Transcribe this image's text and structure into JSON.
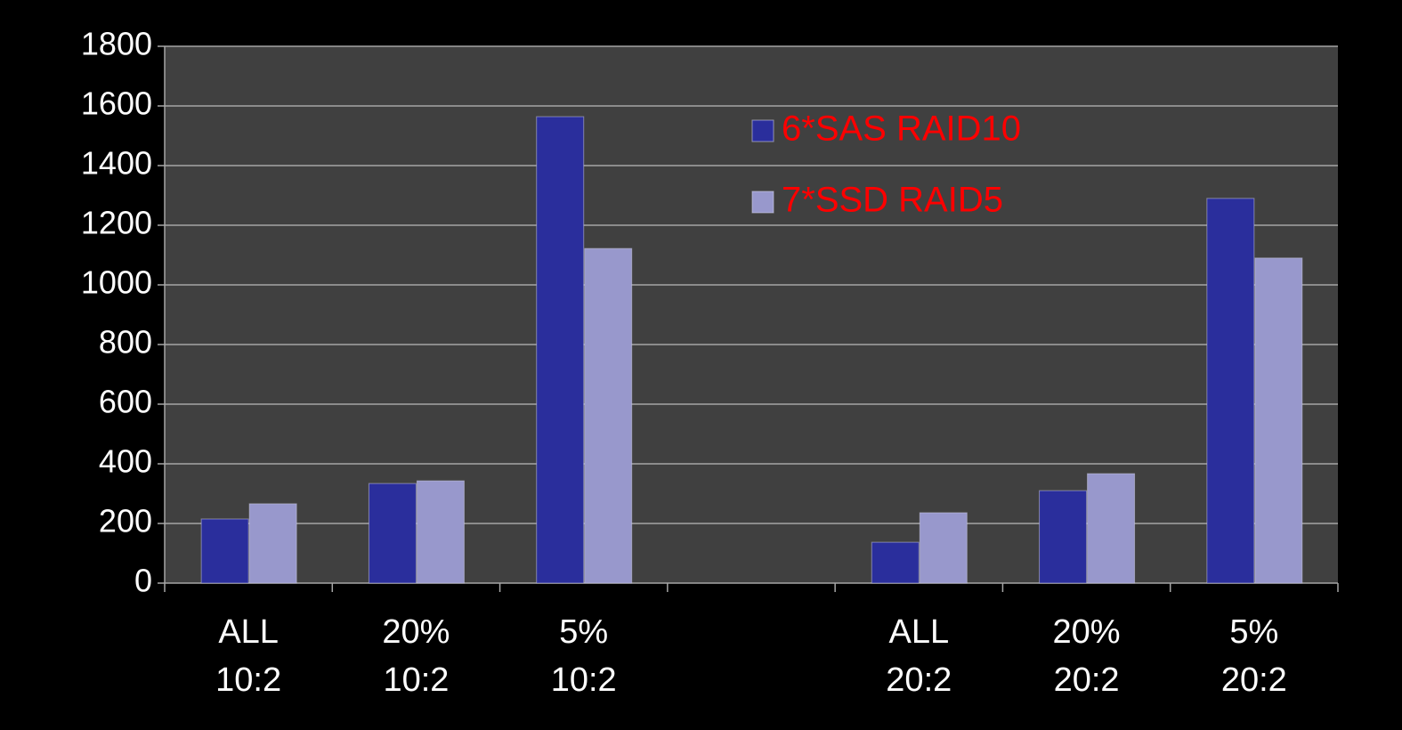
{
  "chart_data": {
    "type": "bar",
    "categories": [
      "ALL 10:2",
      "20% 10:2",
      "5% 10:2",
      null,
      "ALL 20:2",
      "20% 20:2",
      "5% 20:2"
    ],
    "series": [
      {
        "name": "6*SAS RAID10",
        "color": "#2a2e9c",
        "values": [
          215,
          334,
          1564,
          null,
          137,
          310,
          1290
        ]
      },
      {
        "name": "7*SSD RAID5",
        "color": "#9898cc",
        "values": [
          266,
          343,
          1122,
          null,
          236,
          367,
          1090
        ]
      }
    ],
    "ylim": [
      0,
      1800
    ],
    "yticks": [
      0,
      200,
      400,
      600,
      800,
      1000,
      1200,
      1400,
      1600,
      1800
    ],
    "grid": true,
    "legend_color": "#ff0000"
  }
}
